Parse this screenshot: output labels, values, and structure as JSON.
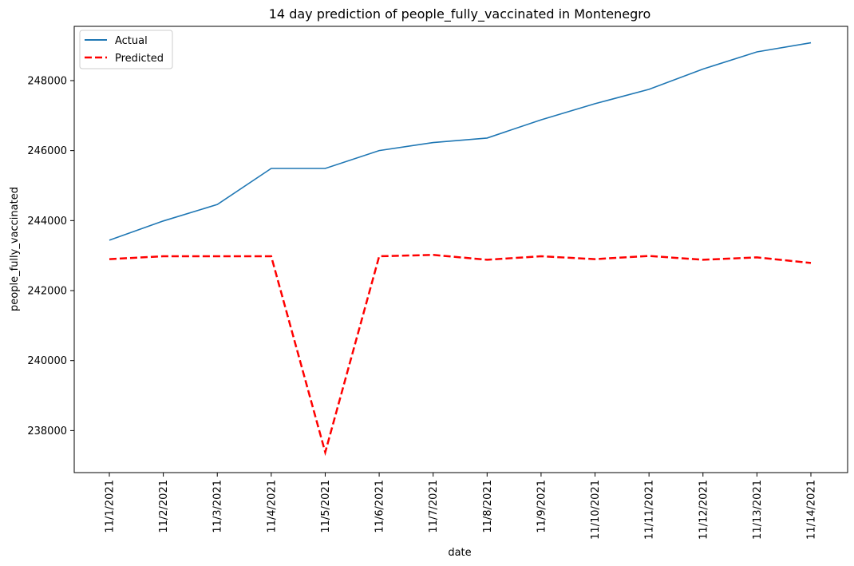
{
  "chart_data": {
    "type": "line",
    "title": "14 day prediction of people_fully_vaccinated in Montenegro",
    "xlabel": "date",
    "ylabel": "people_fully_vaccinated",
    "categories": [
      "11/1/2021",
      "11/2/2021",
      "11/3/2021",
      "11/4/2021",
      "11/5/2021",
      "11/6/2021",
      "11/7/2021",
      "11/8/2021",
      "11/9/2021",
      "11/10/2021",
      "11/11/2021",
      "11/12/2021",
      "11/13/2021",
      "11/14/2021"
    ],
    "yticks": [
      238000,
      240000,
      242000,
      244000,
      246000,
      248000
    ],
    "ylim": [
      236800,
      249550
    ],
    "grid": false,
    "legend": "top-left",
    "series": [
      {
        "name": "Actual",
        "color": "#1f77b4",
        "style": "solid",
        "values": [
          243440,
          243990,
          244460,
          245490,
          245490,
          246000,
          246230,
          246360,
          246880,
          247340,
          247750,
          248330,
          248820,
          249080
        ]
      },
      {
        "name": "Predicted",
        "color": "#ff0000",
        "style": "dashed",
        "values": [
          242900,
          242980,
          242980,
          242980,
          237380,
          242980,
          243020,
          242880,
          242980,
          242900,
          242990,
          242880,
          242950,
          242790
        ]
      }
    ]
  }
}
